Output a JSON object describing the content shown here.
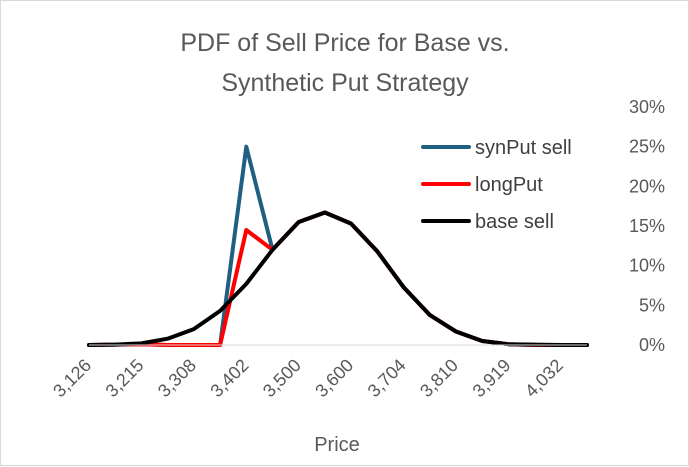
{
  "chart_data": {
    "type": "line",
    "title_lines": [
      "PDF of Sell Price for Base vs.",
      "Synthetic Put Strategy"
    ],
    "xlabel": "Price",
    "x_tick_labels": [
      "3,126",
      "3,215",
      "3,308",
      "3,402",
      "3,500",
      "3,600",
      "3,704",
      "3,810",
      "3,919",
      "4,032"
    ],
    "y_tick_labels": [
      "0%",
      "5%",
      "10%",
      "15%",
      "20%",
      "25%",
      "30%"
    ],
    "ylim": [
      0,
      0.3
    ],
    "y_axis_position": "right",
    "legend_position": "top-right",
    "gridlines": false,
    "series": [
      {
        "name": "synPut sell",
        "color": "#1f5f82",
        "values": [
          0.0,
          0.0005,
          0.001,
          0.0,
          0.0,
          0.0,
          0.25,
          0.12,
          0.155,
          0.167,
          0.153,
          0.118,
          0.073,
          0.038,
          0.017,
          0.005,
          0.001,
          0.0,
          0.0,
          0.0
        ]
      },
      {
        "name": "longPut",
        "color": "#ff0000",
        "values": [
          0.0,
          0.0005,
          0.001,
          0.0,
          0.0,
          0.0,
          0.145,
          0.12,
          0.155,
          0.167,
          0.153,
          0.118,
          0.073,
          0.038,
          0.017,
          0.005,
          0.001,
          0.0,
          0.0,
          0.0
        ]
      },
      {
        "name": "base sell",
        "color": "#000000",
        "values": [
          0.0,
          0.0005,
          0.002,
          0.008,
          0.02,
          0.043,
          0.077,
          0.12,
          0.155,
          0.167,
          0.153,
          0.118,
          0.073,
          0.038,
          0.017,
          0.005,
          0.001,
          0.0005,
          0.0,
          0.0
        ]
      }
    ]
  }
}
